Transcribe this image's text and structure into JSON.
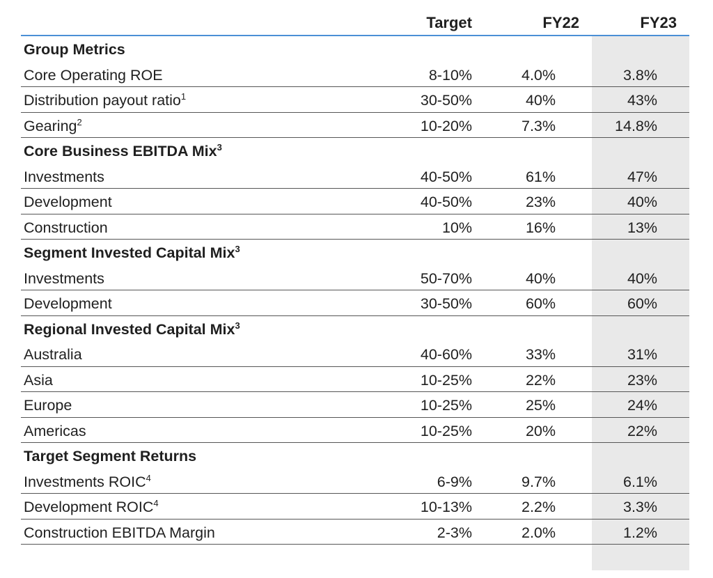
{
  "header": {
    "target": "Target",
    "fy22": "FY22",
    "fy23": "FY23"
  },
  "rows": [
    {
      "type": "section",
      "label": "Group Metrics",
      "sup": ""
    },
    {
      "type": "data",
      "label": "Core Operating ROE",
      "sup": "",
      "target": "8-10%",
      "fy22": "4.0%",
      "fy23": "3.8%"
    },
    {
      "type": "data",
      "label": "Distribution payout ratio",
      "sup": "1",
      "target": "30-50%",
      "fy22": "40%",
      "fy23": "43%"
    },
    {
      "type": "data",
      "label": "Gearing",
      "sup": "2",
      "target": "10-20%",
      "fy22": "7.3%",
      "fy23": "14.8%"
    },
    {
      "type": "section",
      "label": "Core Business EBITDA Mix",
      "sup": "3"
    },
    {
      "type": "data",
      "label": "Investments",
      "sup": "",
      "target": "40-50%",
      "fy22": "61%",
      "fy23": "47%"
    },
    {
      "type": "data",
      "label": "Development",
      "sup": "",
      "target": "40-50%",
      "fy22": "23%",
      "fy23": "40%"
    },
    {
      "type": "data",
      "label": "Construction",
      "sup": "",
      "target": "10%",
      "fy22": "16%",
      "fy23": "13%"
    },
    {
      "type": "section",
      "label": "Segment Invested Capital Mix",
      "sup": "3"
    },
    {
      "type": "data",
      "label": "Investments",
      "sup": "",
      "target": "50-70%",
      "fy22": "40%",
      "fy23": "40%"
    },
    {
      "type": "data",
      "label": "Development",
      "sup": "",
      "target": "30-50%",
      "fy22": "60%",
      "fy23": "60%"
    },
    {
      "type": "section",
      "label": "Regional Invested Capital Mix",
      "sup": "3"
    },
    {
      "type": "data",
      "label": "Australia",
      "sup": "",
      "target": "40-60%",
      "fy22": "33%",
      "fy23": "31%"
    },
    {
      "type": "data",
      "label": "Asia",
      "sup": "",
      "target": "10-25%",
      "fy22": "22%",
      "fy23": "23%"
    },
    {
      "type": "data",
      "label": "Europe",
      "sup": "",
      "target": "10-25%",
      "fy22": "25%",
      "fy23": "24%"
    },
    {
      "type": "data",
      "label": "Americas",
      "sup": "",
      "target": "10-25%",
      "fy22": "20%",
      "fy23": "22%"
    },
    {
      "type": "section",
      "label": "Target Segment Returns",
      "sup": ""
    },
    {
      "type": "data",
      "label": "Investments ROIC",
      "sup": "4",
      "target": "6-9%",
      "fy22": "9.7%",
      "fy23": "6.1%"
    },
    {
      "type": "data",
      "label": "Development ROIC",
      "sup": "4",
      "target": "10-13%",
      "fy22": "2.2%",
      "fy23": "3.3%"
    },
    {
      "type": "data",
      "label": "Construction EBITDA Margin",
      "sup": "",
      "target": "2-3%",
      "fy22": "2.0%",
      "fy23": "1.2%"
    }
  ]
}
